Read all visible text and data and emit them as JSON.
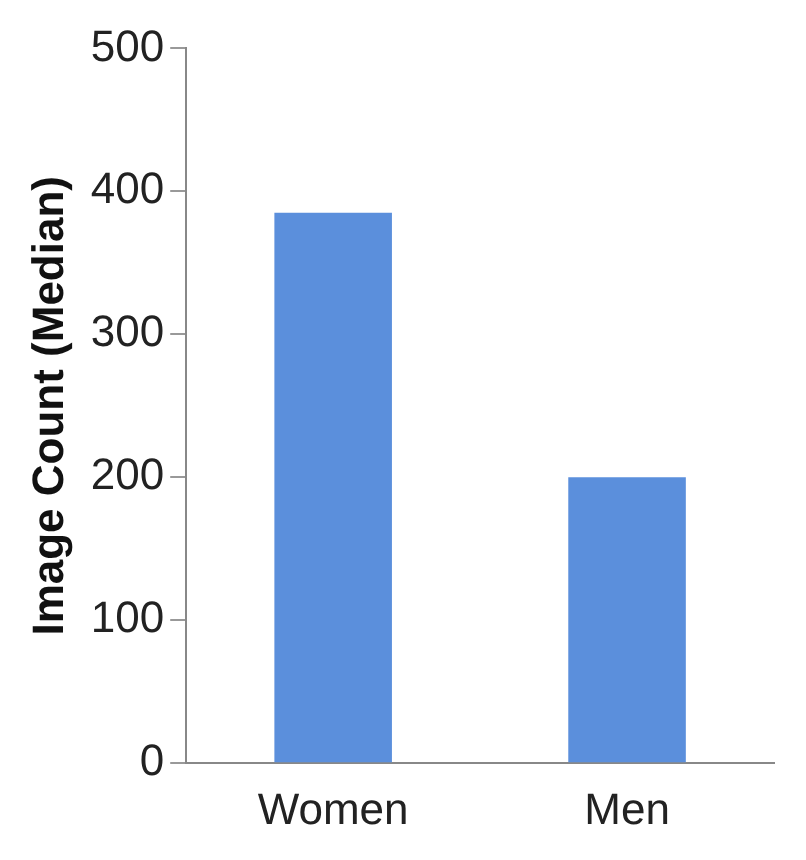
{
  "chart_data": {
    "type": "bar",
    "ylabel": "Image Count (Median)",
    "categories": [
      "Women",
      "Men"
    ],
    "values": [
      385,
      200
    ],
    "color": "#5b8fdc",
    "ylim": [
      0,
      500
    ],
    "yticks": [
      0,
      100,
      200,
      300,
      400,
      500
    ],
    "grid": false,
    "legend": false
  }
}
